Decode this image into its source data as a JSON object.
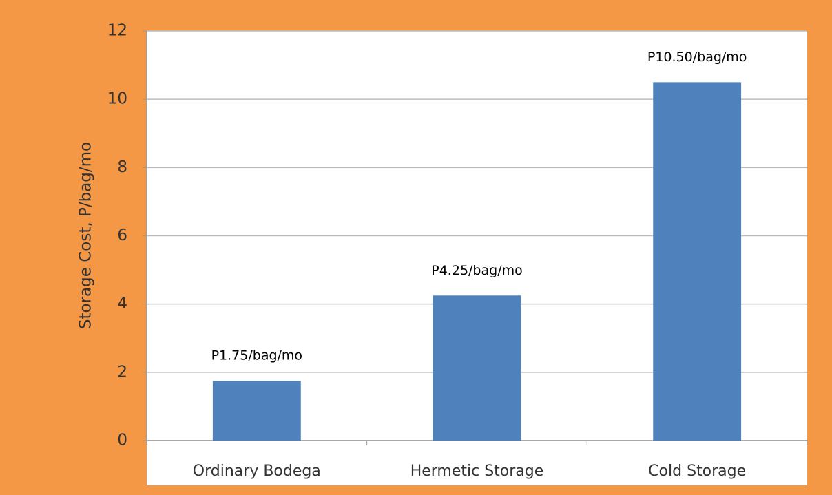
{
  "chart_data": {
    "type": "bar",
    "y_label": "Storage Cost, P/bag/mo",
    "categories": [
      "Ordinary Bodega",
      "Hermetic Storage",
      "Cold Storage"
    ],
    "values": [
      1.75,
      4.25,
      10.5
    ],
    "value_labels": [
      "P1.75/bag/mo",
      "P4.25/bag/mo",
      "P10.50/bag/mo"
    ],
    "color": "#4f81bd",
    "ylim": [
      0,
      12
    ],
    "yticks": [
      0,
      2,
      4,
      6,
      8,
      10,
      12
    ],
    "grid": true
  }
}
